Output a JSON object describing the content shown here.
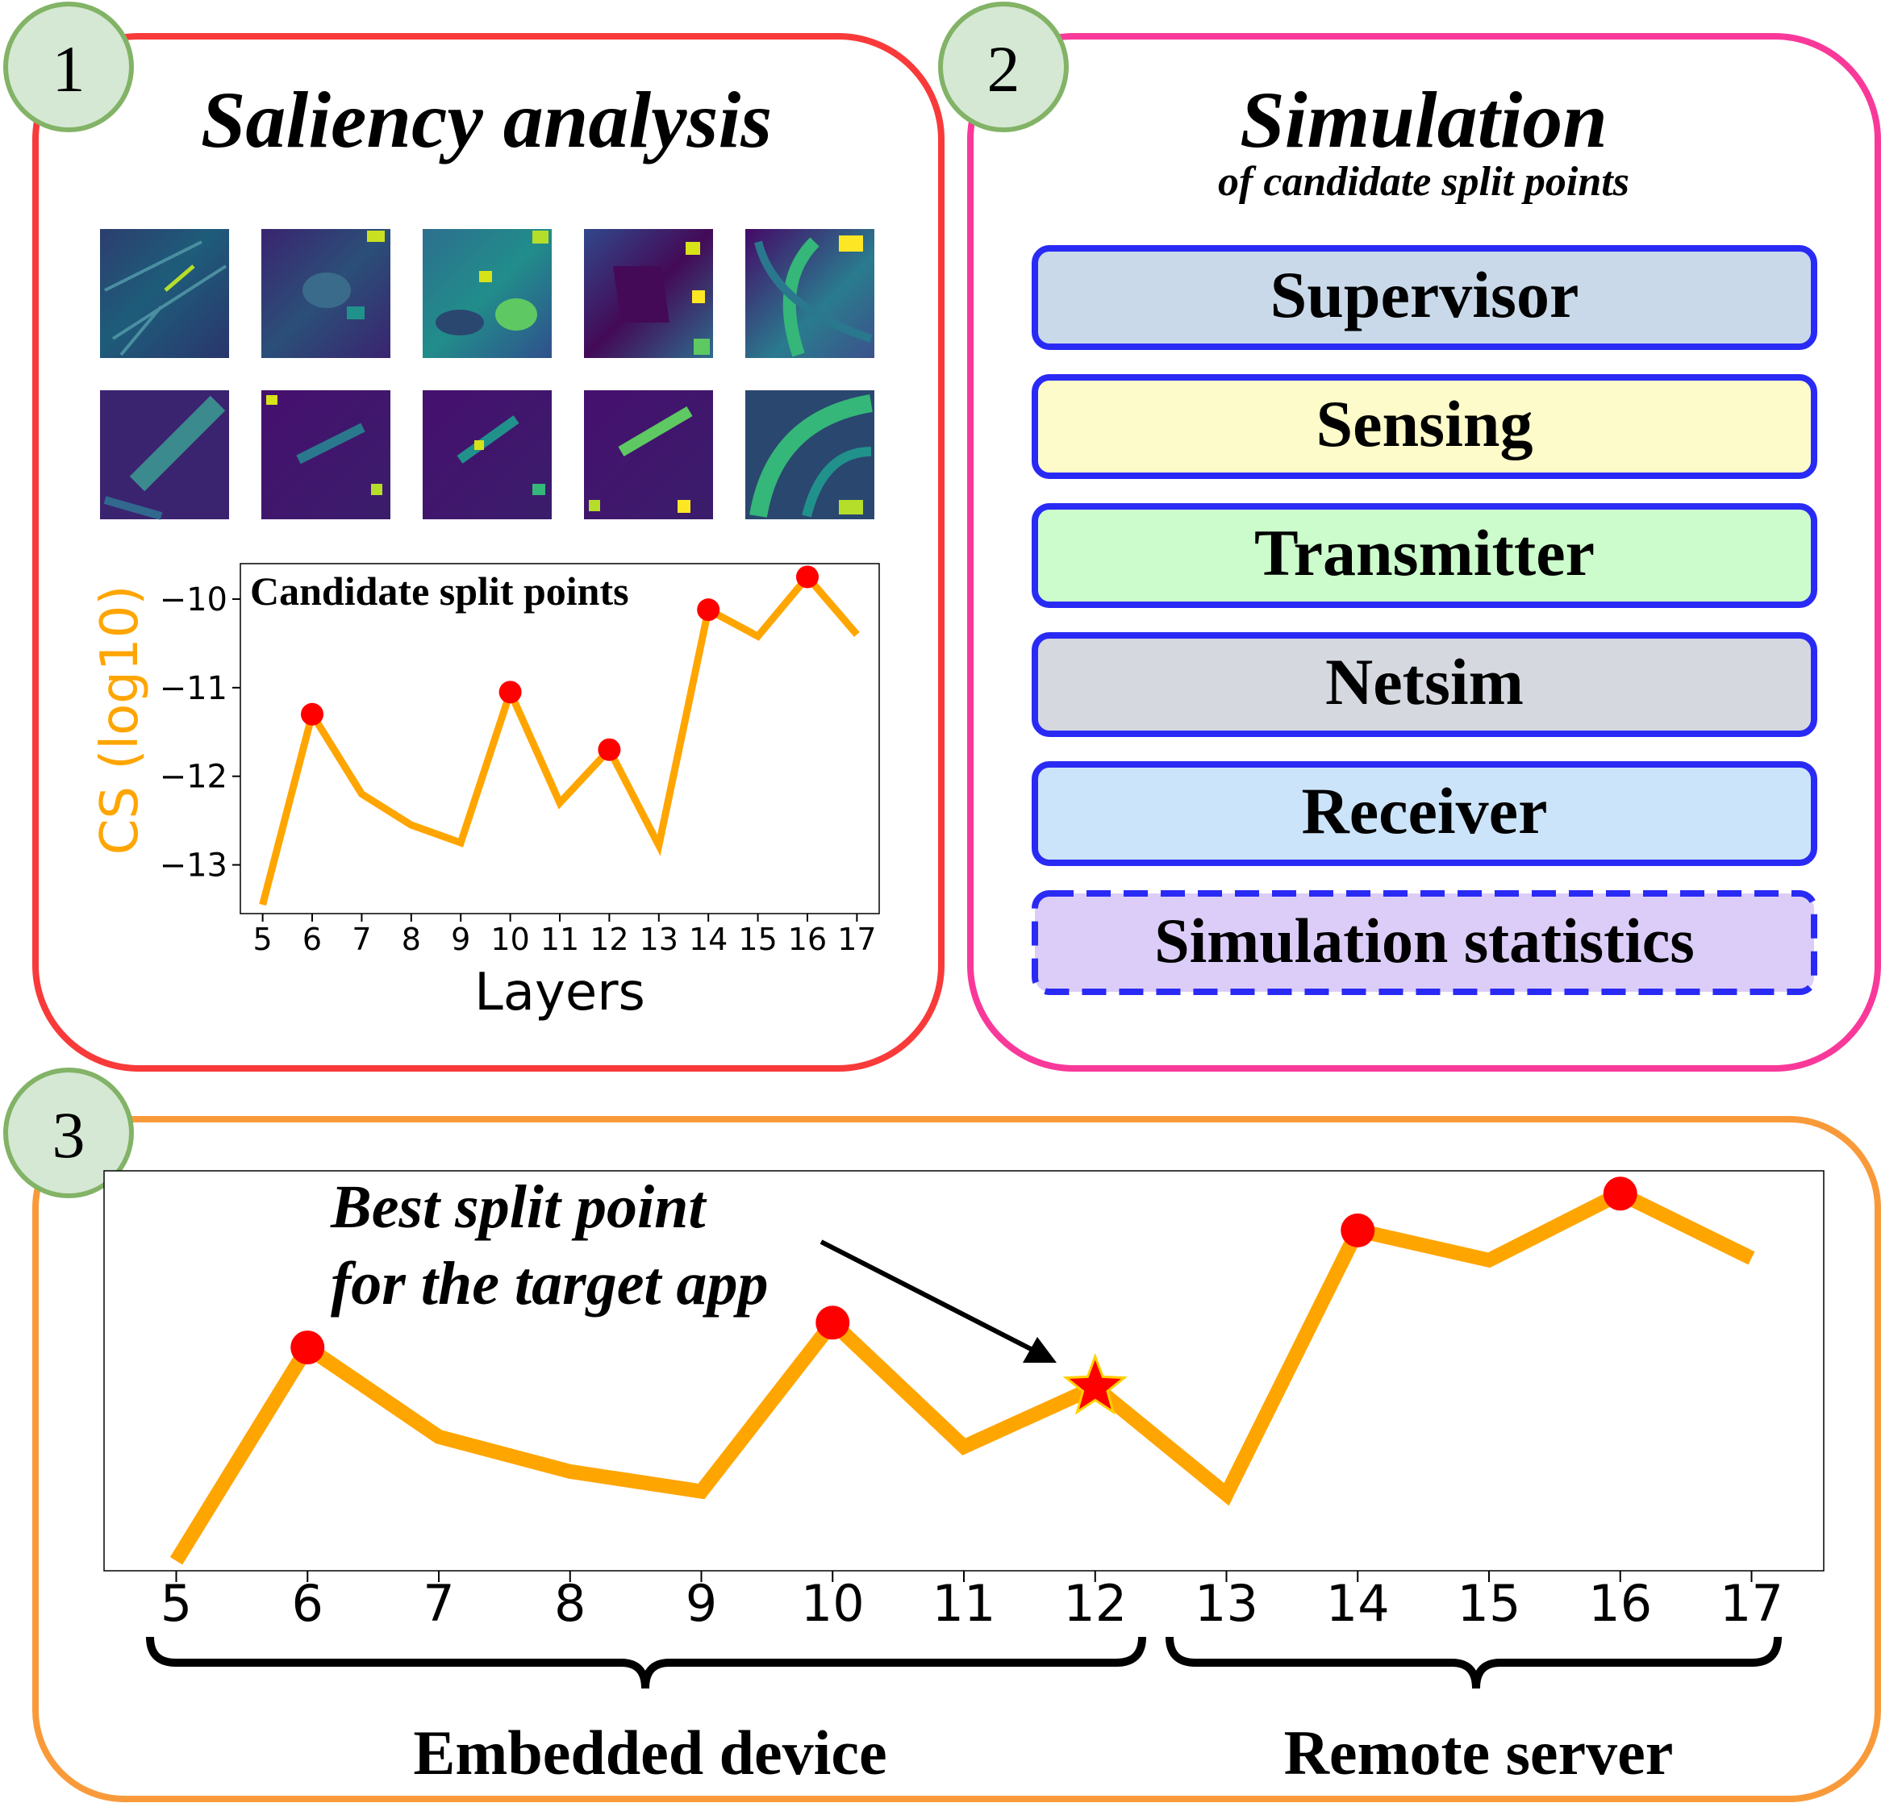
{
  "panel1": {
    "badge": "1",
    "title": "Saliency analysis",
    "chart_data": {
      "type": "line",
      "title": "Candidate split points",
      "xlabel": "Layers",
      "ylabel": "CS (log10)",
      "x": [
        5,
        6,
        7,
        8,
        9,
        10,
        11,
        12,
        13,
        14,
        15,
        16,
        17
      ],
      "y": [
        -13.45,
        -11.3,
        -12.2,
        -12.55,
        -12.75,
        -11.05,
        -12.3,
        -11.7,
        -12.78,
        -10.12,
        -10.42,
        -9.75,
        -10.4
      ],
      "highlighted_x": [
        6,
        10,
        12,
        14,
        16
      ],
      "yticks": [
        -10,
        -11,
        -12,
        -13
      ],
      "ylim": [
        -13.55,
        -9.6
      ],
      "xlim": [
        4.55,
        17.45
      ],
      "line_color": "#ffa500",
      "marker_color": "#ff0000"
    }
  },
  "panel2": {
    "badge": "2",
    "title": "Simulation",
    "subtitle": "of candidate split points",
    "modules": [
      {
        "label": "Supervisor",
        "fill": "#c9d9e9"
      },
      {
        "label": "Sensing",
        "fill": "#fdfbc9"
      },
      {
        "label": "Transmitter",
        "fill": "#ccfccc"
      },
      {
        "label": "Netsim",
        "fill": "#d5d9df"
      },
      {
        "label": "Receiver",
        "fill": "#cce4fa"
      },
      {
        "label": "Simulation statistics",
        "fill": "#dccdf8",
        "dashed": true
      }
    ]
  },
  "panel3": {
    "badge": "3",
    "annotation_line1": "Best split point",
    "annotation_line2": "for the target app",
    "best_split_x": 12,
    "device_label": "Embedded device",
    "server_label": "Remote server"
  },
  "colors": {
    "panel1_border": "#f93a3a",
    "panel2_border": "#f9399a",
    "panel3_border": "#f99a3a",
    "badge_fill": "#d5e8d4",
    "badge_border": "#82b366",
    "module_border": "#2a2af5",
    "line": "#ffa500",
    "marker": "#ff0000"
  }
}
